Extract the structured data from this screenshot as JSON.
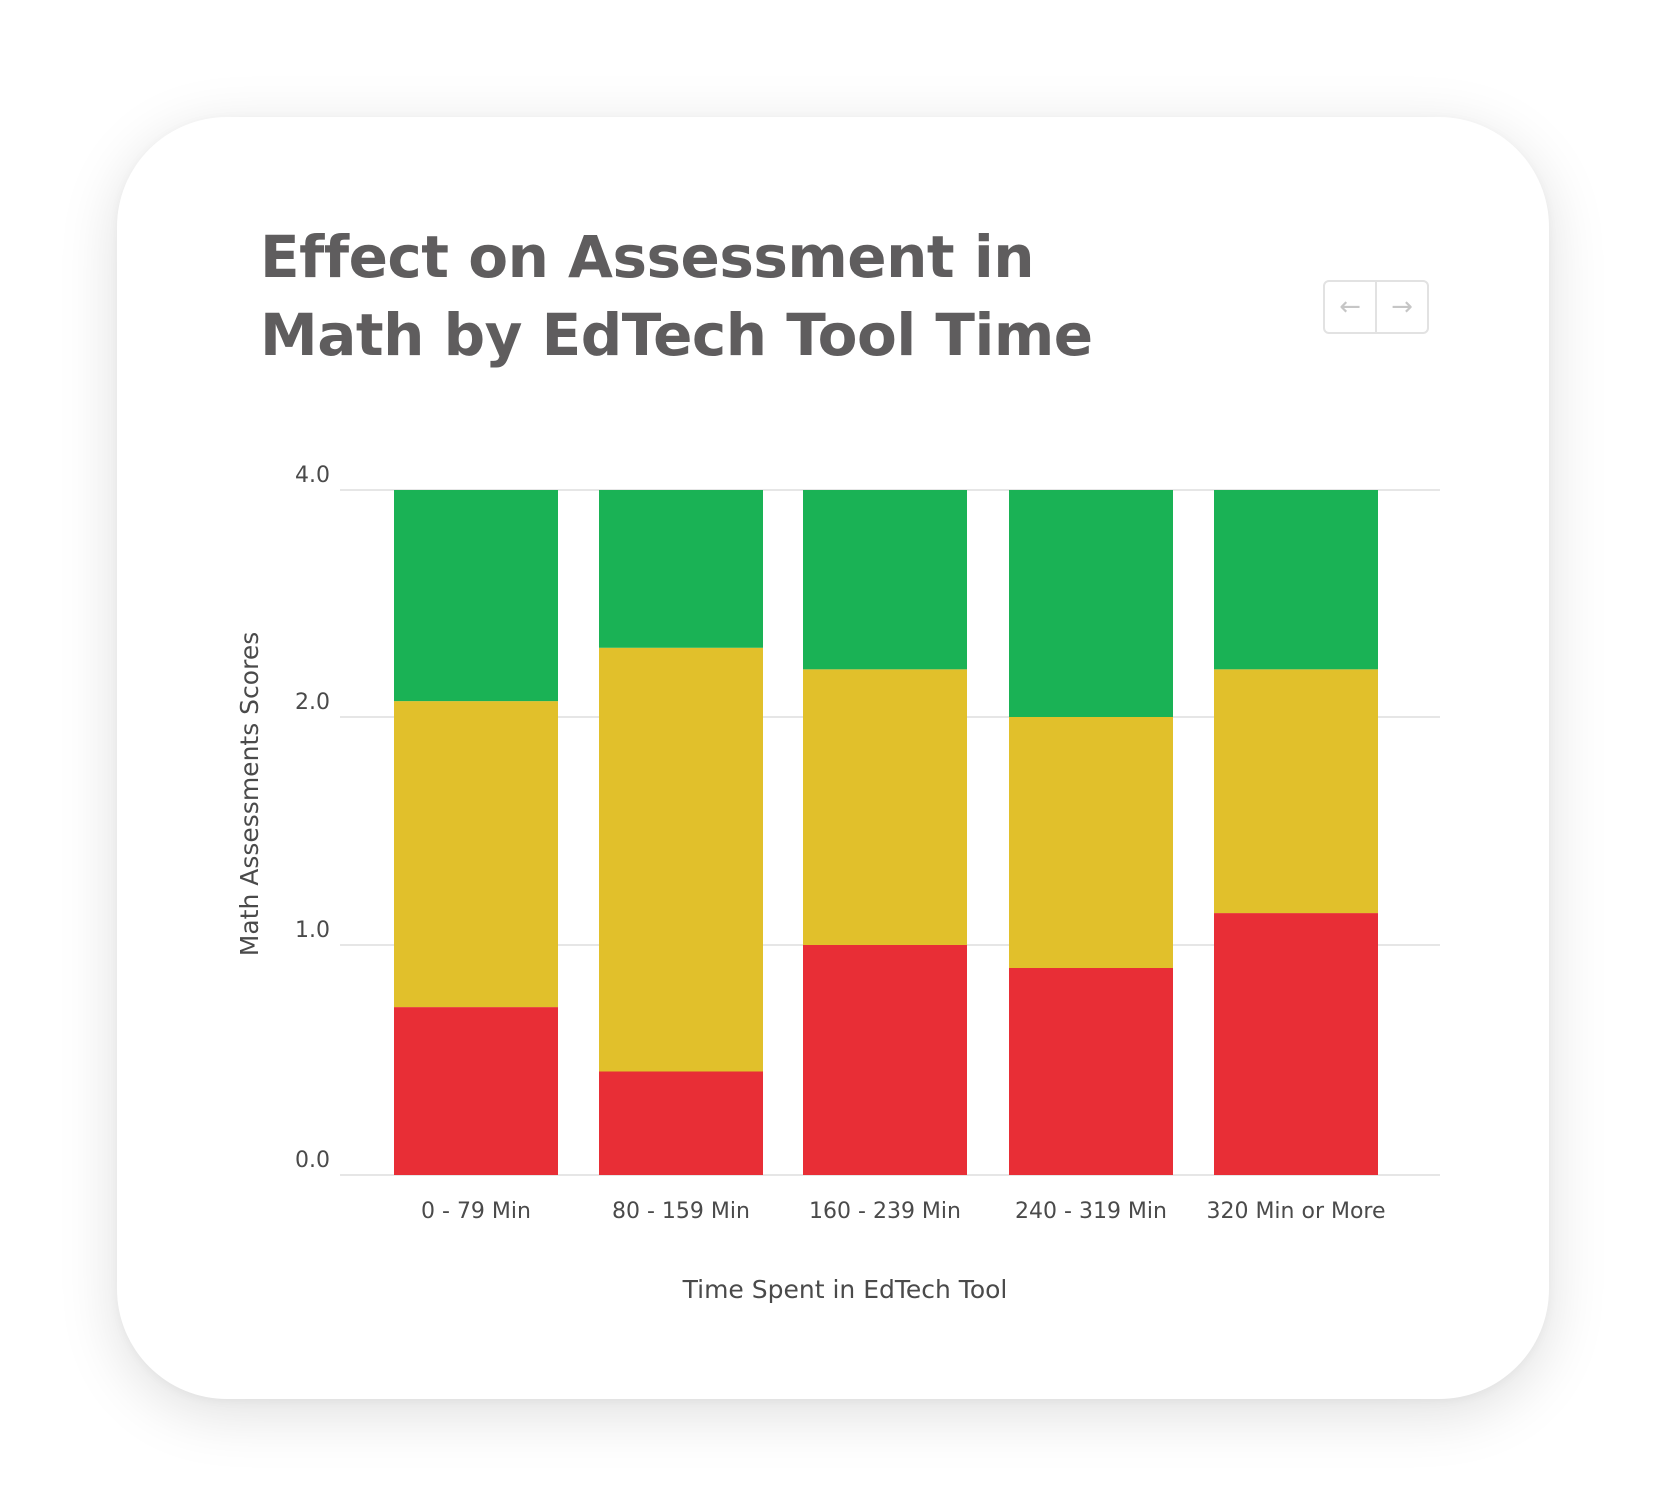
{
  "title_lines": [
    "Effect on Assessment in",
    "Math by EdTech Tool Time"
  ],
  "nav": {
    "prev_icon": "←",
    "next_icon": "→"
  },
  "colors": {
    "red": "#e82e36",
    "yellow": "#e1c02b",
    "green": "#1ab255",
    "grid": "#dedede"
  },
  "chart_data": {
    "type": "bar",
    "stacked": true,
    "title": "Effect on Assessment in Math by EdTech Tool Time",
    "xlabel": "Time Spent in EdTech Tool",
    "ylabel": "Math Assessments Scores",
    "categories": [
      "0 - 79 Min",
      "80 - 159 Min",
      "160 - 239 Min",
      "240 - 319 Min",
      "320 Min or More"
    ],
    "y_ticks": [
      0.0,
      1.0,
      2.0,
      4.0
    ],
    "y_tick_labels": [
      "0.0",
      "1.0",
      "2.0",
      "4.0"
    ],
    "ylim": [
      0,
      4
    ],
    "series": [
      {
        "name": "red",
        "color": "#e82e36",
        "tops": [
          0.73,
          0.45,
          1.0,
          0.9,
          1.14
        ]
      },
      {
        "name": "yellow",
        "color": "#e1c02b",
        "tops": [
          2.14,
          2.61,
          2.42,
          2.0,
          2.42
        ]
      },
      {
        "name": "green",
        "color": "#1ab255",
        "tops": [
          4.0,
          4.0,
          4.0,
          4.0,
          4.0
        ]
      }
    ],
    "grid": true,
    "legend": "none"
  }
}
